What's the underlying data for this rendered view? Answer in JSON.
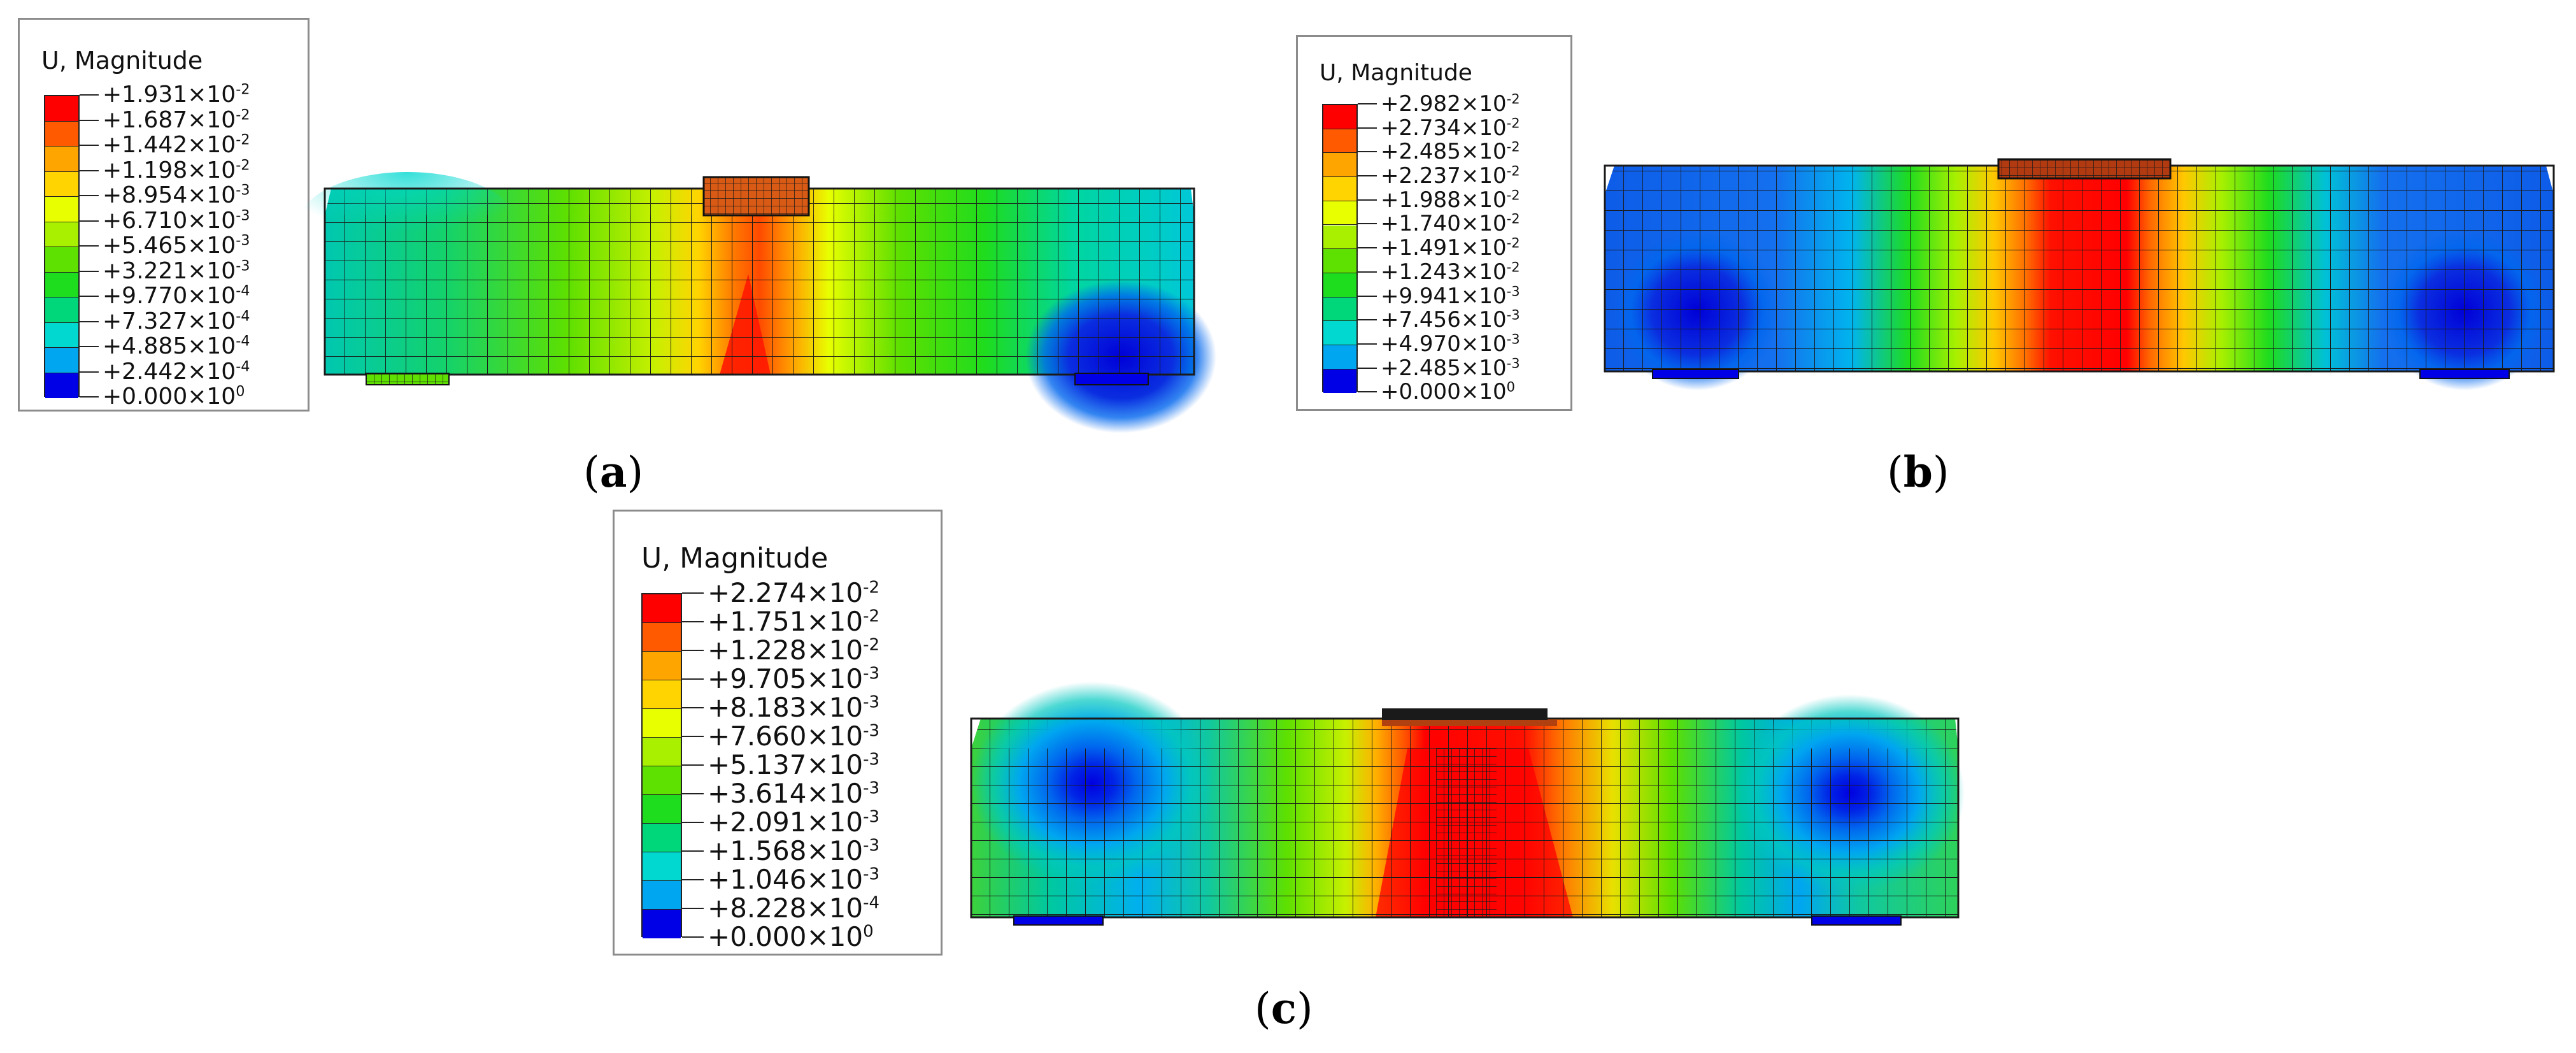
{
  "panels": [
    {
      "id": "a",
      "caption_letter": "a",
      "legend": {
        "title": "U, Magnitude",
        "values": [
          {
            "mantissa": "+1.931",
            "exponent": "-2"
          },
          {
            "mantissa": "+1.687",
            "exponent": "-2"
          },
          {
            "mantissa": "+1.442",
            "exponent": "-2"
          },
          {
            "mantissa": "+1.198",
            "exponent": "-2"
          },
          {
            "mantissa": "+8.954",
            "exponent": "-3"
          },
          {
            "mantissa": "+6.710",
            "exponent": "-3"
          },
          {
            "mantissa": "+5.465",
            "exponent": "-3"
          },
          {
            "mantissa": "+3.221",
            "exponent": "-3"
          },
          {
            "mantissa": "+9.770",
            "exponent": "-4"
          },
          {
            "mantissa": "+7.327",
            "exponent": "-4"
          },
          {
            "mantissa": "+4.885",
            "exponent": "-4"
          },
          {
            "mantissa": "+2.442",
            "exponent": "-4"
          },
          {
            "mantissa": "+0.000",
            "exponent": "0"
          }
        ]
      }
    },
    {
      "id": "b",
      "caption_letter": "b",
      "legend": {
        "title": "U, Magnitude",
        "values": [
          {
            "mantissa": "+2.982",
            "exponent": "-2"
          },
          {
            "mantissa": "+2.734",
            "exponent": "-2"
          },
          {
            "mantissa": "+2.485",
            "exponent": "-2"
          },
          {
            "mantissa": "+2.237",
            "exponent": "-2"
          },
          {
            "mantissa": "+1.988",
            "exponent": "-2"
          },
          {
            "mantissa": "+1.740",
            "exponent": "-2"
          },
          {
            "mantissa": "+1.491",
            "exponent": "-2"
          },
          {
            "mantissa": "+1.243",
            "exponent": "-2"
          },
          {
            "mantissa": "+9.941",
            "exponent": "-3"
          },
          {
            "mantissa": "+7.456",
            "exponent": "-3"
          },
          {
            "mantissa": "+4.970",
            "exponent": "-3"
          },
          {
            "mantissa": "+2.485",
            "exponent": "-3"
          },
          {
            "mantissa": "+0.000",
            "exponent": "0"
          }
        ]
      }
    },
    {
      "id": "c",
      "caption_letter": "c",
      "legend": {
        "title": "U, Magnitude",
        "values": [
          {
            "mantissa": "+2.274",
            "exponent": "-2"
          },
          {
            "mantissa": "+1.751",
            "exponent": "-2"
          },
          {
            "mantissa": "+1.228",
            "exponent": "-2"
          },
          {
            "mantissa": "+9.705",
            "exponent": "-3"
          },
          {
            "mantissa": "+8.183",
            "exponent": "-3"
          },
          {
            "mantissa": "+7.660",
            "exponent": "-3"
          },
          {
            "mantissa": "+5.137",
            "exponent": "-3"
          },
          {
            "mantissa": "+3.614",
            "exponent": "-3"
          },
          {
            "mantissa": "+2.091",
            "exponent": "-3"
          },
          {
            "mantissa": "+1.568",
            "exponent": "-3"
          },
          {
            "mantissa": "+1.046",
            "exponent": "-3"
          },
          {
            "mantissa": "+8.228",
            "exponent": "-4"
          },
          {
            "mantissa": "+0.000",
            "exponent": "0"
          }
        ]
      }
    }
  ],
  "colormap": [
    "#ff0000",
    "#ff5a00",
    "#ffa500",
    "#ffd400",
    "#e8ff00",
    "#a8f000",
    "#5ee000",
    "#1edc1e",
    "#00d67a",
    "#00d8d0",
    "#00a6f0",
    "#0066ee",
    "#0000e6"
  ]
}
